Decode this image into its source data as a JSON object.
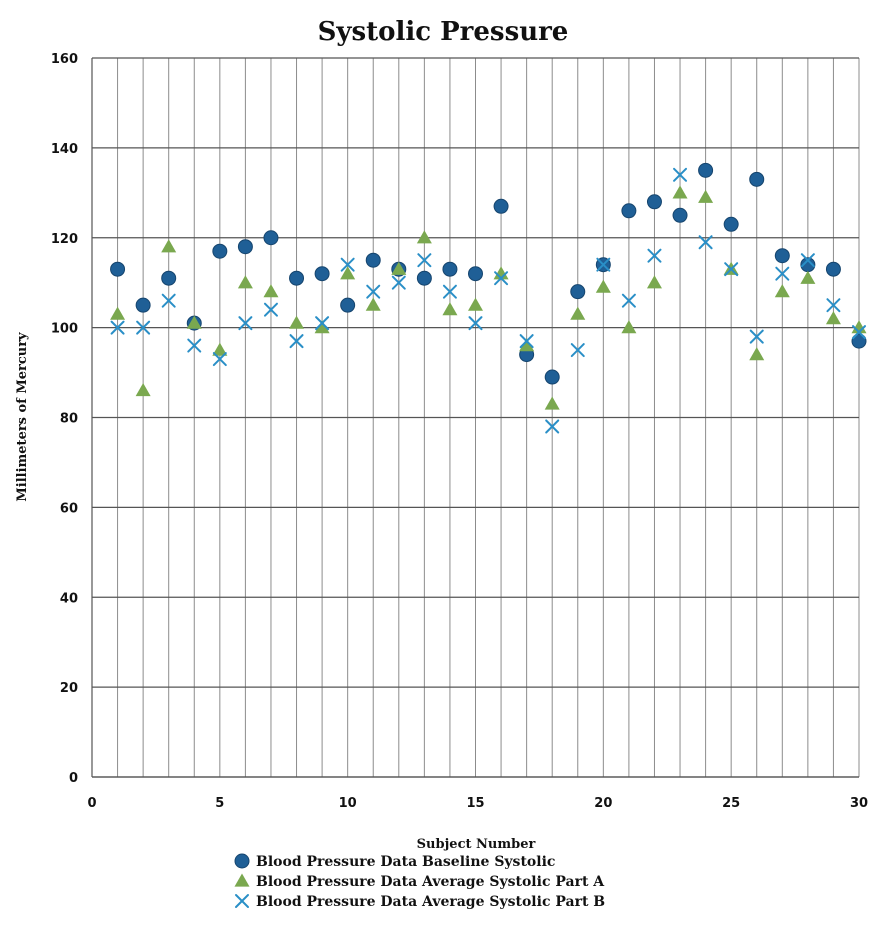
{
  "chart_data": {
    "type": "scatter",
    "title": "Systolic Pressure",
    "xlabel": "Subject Number",
    "ylabel": "Millimeters of Mercury",
    "xlim": [
      0,
      30
    ],
    "ylim": [
      0,
      160
    ],
    "xticks": [
      0,
      5,
      10,
      15,
      20,
      25,
      30
    ],
    "yticks": [
      0,
      20,
      40,
      60,
      80,
      100,
      120,
      140,
      160
    ],
    "x_tick_labels": [
      "0",
      "5",
      "10",
      "15",
      "20",
      "25",
      "30"
    ],
    "y_tick_labels": [
      "0",
      "20",
      "40",
      "60",
      "80",
      "100",
      "120",
      "140",
      "160"
    ],
    "grid": true,
    "legend_position": "bottom",
    "x": [
      1,
      2,
      3,
      4,
      5,
      6,
      7,
      8,
      9,
      10,
      11,
      12,
      13,
      14,
      15,
      16,
      17,
      18,
      19,
      20,
      21,
      22,
      23,
      24,
      25,
      26,
      27,
      28,
      29,
      30
    ],
    "series": [
      {
        "name": "Blood Pressure Data Baseline Systolic",
        "marker": "circle",
        "color": "#1f5f96",
        "values": [
          113,
          105,
          111,
          101,
          117,
          118,
          120,
          111,
          112,
          105,
          115,
          113,
          111,
          113,
          112,
          127,
          94,
          89,
          108,
          114,
          126,
          128,
          125,
          135,
          123,
          133,
          116,
          114,
          113,
          97
        ]
      },
      {
        "name": "Blood Pressure Data Average Systolic Part A",
        "marker": "triangle",
        "color": "#7aa84f",
        "values": [
          103,
          86,
          118,
          101,
          95,
          110,
          108,
          101,
          100,
          112,
          105,
          113,
          120,
          104,
          105,
          112,
          96,
          83,
          103,
          109,
          100,
          110,
          130,
          129,
          113,
          94,
          108,
          111,
          102,
          100
        ]
      },
      {
        "name": "Blood Pressure Data Average Systolic Part B",
        "marker": "x",
        "color": "#2a8fc7",
        "values": [
          100,
          100,
          106,
          96,
          93,
          101,
          104,
          97,
          101,
          114,
          108,
          110,
          115,
          108,
          101,
          111,
          97,
          78,
          95,
          114,
          106,
          116,
          134,
          119,
          113,
          98,
          112,
          115,
          105,
          99
        ]
      }
    ]
  }
}
